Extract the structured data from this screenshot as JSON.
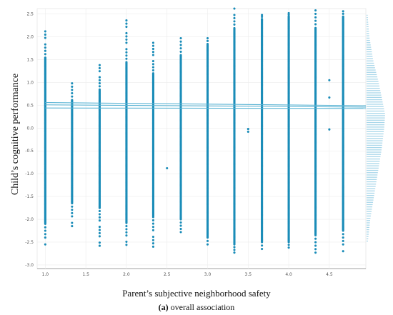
{
  "chart_data": {
    "type": "scatter",
    "title": "",
    "xlabel": "Parent’s subjective neighborhood safety",
    "ylabel": "Child’s cognitive performance",
    "xlim": [
      0.9,
      4.95
    ],
    "ylim": [
      -3.08,
      2.62
    ],
    "xticks": [
      "1.0",
      "1.5",
      "2.0",
      "2.5",
      "3.0",
      "3.5",
      "4.0",
      "4.5"
    ],
    "yticks": [
      "2.5",
      "2.0",
      "1.5",
      "1.0",
      "0.5",
      "0.0",
      "-0.5",
      "-1.0",
      "-1.5",
      "-2.0",
      "-2.5",
      "-3.0"
    ],
    "grid": true,
    "point_color": "#1a8cb8",
    "line_color": "#5ab4d4",
    "marginal_color": "#a9d7ea",
    "columns": [
      {
        "x": 1.0,
        "min": -2.55,
        "max": 2.12,
        "gap_min": -2.1,
        "gap_max": 1.55
      },
      {
        "x": 1.33,
        "min": -2.15,
        "max": 0.98,
        "gap_min": -1.65,
        "gap_max": 0.62
      },
      {
        "x": 1.67,
        "min": -2.58,
        "max": 1.38,
        "gap_min": -1.75,
        "gap_max": 0.85
      },
      {
        "x": 2.0,
        "min": -2.56,
        "max": 2.36,
        "gap_min": -2.08,
        "gap_max": 1.45
      },
      {
        "x": 2.33,
        "min": -2.6,
        "max": 1.87,
        "gap_min": -1.95,
        "gap_max": 1.2
      },
      {
        "x": 2.67,
        "min": -2.28,
        "max": 1.97,
        "gap_min": -2.0,
        "gap_max": 1.6
      },
      {
        "x": 3.0,
        "min": -2.55,
        "max": 1.97,
        "gap_min": -2.4,
        "gap_max": 1.85
      },
      {
        "x": 3.33,
        "min": -2.73,
        "max": 2.62,
        "gap_min": -2.55,
        "gap_max": 2.2
      },
      {
        "x": 3.67,
        "min": -2.65,
        "max": 2.48,
        "gap_min": -2.5,
        "gap_max": 2.4
      },
      {
        "x": 4.0,
        "min": -2.62,
        "max": 2.52,
        "gap_min": -2.5,
        "gap_max": 2.45
      },
      {
        "x": 4.33,
        "min": -2.73,
        "max": 2.58,
        "gap_min": -2.35,
        "gap_max": 2.2
      },
      {
        "x": 4.67,
        "min": -2.7,
        "max": 2.56,
        "gap_min": -2.25,
        "gap_max": 2.45
      }
    ],
    "outliers": [
      {
        "x": 2.5,
        "y": -0.88
      },
      {
        "x": 3.5,
        "y": -0.02
      },
      {
        "x": 3.5,
        "y": -0.08
      },
      {
        "x": 4.5,
        "y": 1.05
      },
      {
        "x": 4.5,
        "y": 0.67
      },
      {
        "x": 4.5,
        "y": -0.03
      }
    ],
    "fit_lines": [
      {
        "x": [
          1.0,
          4.95
        ],
        "y": [
          0.56,
          0.49
        ]
      },
      {
        "x": [
          1.0,
          4.95
        ],
        "y": [
          0.51,
          0.46
        ]
      },
      {
        "x": [
          1.0,
          4.95
        ],
        "y": [
          0.44,
          0.43
        ]
      }
    ],
    "marginal_y_distribution": [
      {
        "y": 2.5,
        "density": 0.05
      },
      {
        "y": 2.0,
        "density": 0.15
      },
      {
        "y": 1.5,
        "density": 0.35
      },
      {
        "y": 1.0,
        "density": 0.65
      },
      {
        "y": 0.5,
        "density": 0.9
      },
      {
        "y": 0.3,
        "density": 1.0
      },
      {
        "y": 0.0,
        "density": 0.95
      },
      {
        "y": -0.5,
        "density": 0.8
      },
      {
        "y": -1.0,
        "density": 0.6
      },
      {
        "y": -1.5,
        "density": 0.4
      },
      {
        "y": -2.0,
        "density": 0.2
      },
      {
        "y": -2.5,
        "density": 0.07
      }
    ]
  },
  "caption": {
    "label": "(a)",
    "text": " overall association"
  }
}
